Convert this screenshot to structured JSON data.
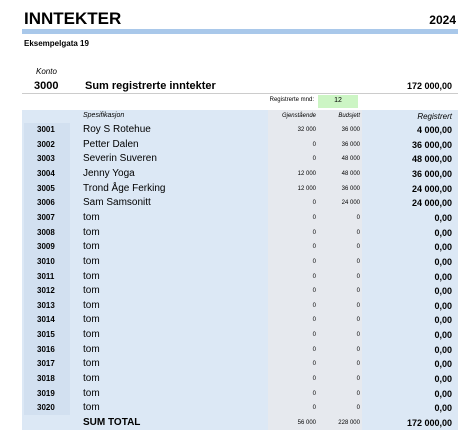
{
  "header": {
    "title": "INNTEKTER",
    "year": "2024",
    "address": "Eksempelgata 19"
  },
  "summary": {
    "konto_label": "Konto",
    "code": "3000",
    "label": "Sum registrerte inntekter",
    "amount": "172 000,00",
    "months_label": "Registrerte mnd:",
    "months": "12"
  },
  "table": {
    "columns": [
      "Spesifikasjon",
      "Gjenstående",
      "Budsjett",
      "Registrert"
    ],
    "rows": [
      [
        "3001",
        "Roy S Rotehue",
        "32 000",
        "36 000",
        "4 000,00"
      ],
      [
        "3002",
        "Petter Dalen",
        "0",
        "36 000",
        "36 000,00"
      ],
      [
        "3003",
        "Severin Suveren",
        "0",
        "48 000",
        "48 000,00"
      ],
      [
        "3004",
        "Jenny Yoga",
        "12 000",
        "48 000",
        "36 000,00"
      ],
      [
        "3005",
        "Trond Åge Ferking",
        "12 000",
        "36 000",
        "24 000,00"
      ],
      [
        "3006",
        "Sam Samsonitt",
        "0",
        "24 000",
        "24 000,00"
      ],
      [
        "3007",
        "tom",
        "0",
        "0",
        "0,00"
      ],
      [
        "3008",
        "tom",
        "0",
        "0",
        "0,00"
      ],
      [
        "3009",
        "tom",
        "0",
        "0",
        "0,00"
      ],
      [
        "3010",
        "tom",
        "0",
        "0",
        "0,00"
      ],
      [
        "3011",
        "tom",
        "0",
        "0",
        "0,00"
      ],
      [
        "3012",
        "tom",
        "0",
        "0",
        "0,00"
      ],
      [
        "3013",
        "tom",
        "0",
        "0",
        "0,00"
      ],
      [
        "3014",
        "tom",
        "0",
        "0",
        "0,00"
      ],
      [
        "3015",
        "tom",
        "0",
        "0",
        "0,00"
      ],
      [
        "3016",
        "tom",
        "0",
        "0",
        "0,00"
      ],
      [
        "3017",
        "tom",
        "0",
        "0",
        "0,00"
      ],
      [
        "3018",
        "tom",
        "0",
        "0",
        "0,00"
      ],
      [
        "3019",
        "tom",
        "0",
        "0",
        "0,00"
      ],
      [
        "3020",
        "tom",
        "0",
        "0",
        "0,00"
      ]
    ],
    "total": [
      "SUM TOTAL",
      "56 000",
      "228 000",
      "172 000,00"
    ]
  }
}
